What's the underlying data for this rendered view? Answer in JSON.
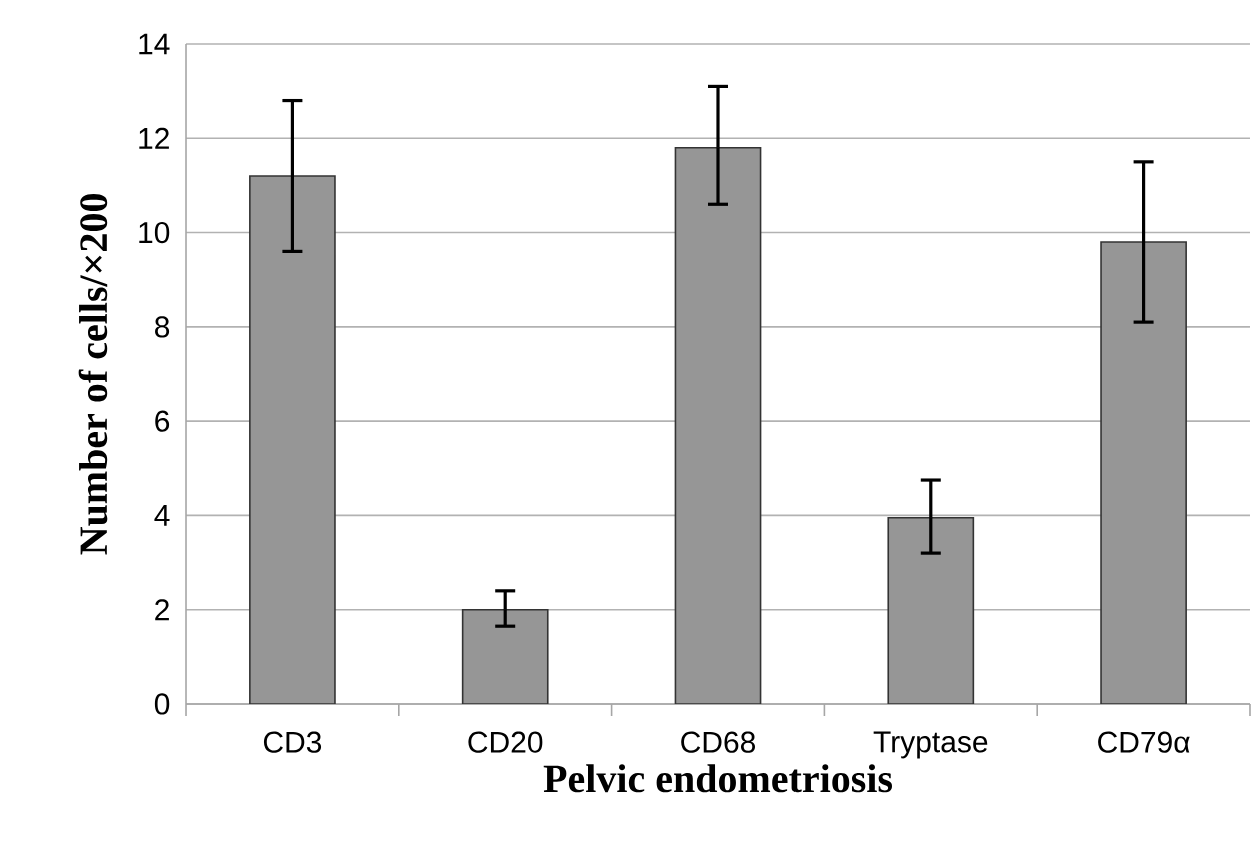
{
  "chart_data": {
    "type": "bar",
    "xlabel": "Pelvic endometriosis",
    "ylabel": "Number of cells/×200",
    "categories": [
      "CD3",
      "CD20",
      "CD68",
      "Tryptase",
      "CD79α"
    ],
    "values": [
      11.2,
      2.0,
      11.8,
      3.95,
      9.8
    ],
    "errors": [
      [
        9.6,
        12.8
      ],
      [
        1.65,
        2.4
      ],
      [
        10.6,
        13.1
      ],
      [
        3.2,
        4.75
      ],
      [
        8.1,
        11.5
      ]
    ],
    "color": "#969696",
    "ylim": [
      0,
      14
    ],
    "yticks": [
      0,
      2,
      4,
      6,
      8,
      10,
      12,
      14
    ],
    "grid": "y"
  }
}
